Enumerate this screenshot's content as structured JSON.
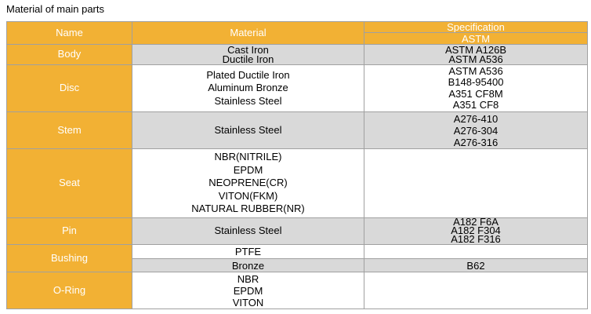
{
  "title": "Material of main parts",
  "header": {
    "name": "Name",
    "material": "Material",
    "specification": "Specification",
    "standard": "ASTM"
  },
  "rows": [
    {
      "name": "Body",
      "parts": [
        {
          "materials": [
            "Cast Iron",
            "Ductile Iron"
          ],
          "specs": [
            "ASTM A126B",
            "ASTM A536"
          ]
        }
      ]
    },
    {
      "name": "Disc",
      "parts": [
        {
          "materials": [
            "Plated Ductile Iron",
            "Aluminum Bronze",
            "Stainless Steel"
          ],
          "specs": [
            "ASTM A536",
            "B148-95400",
            "A351 CF8M",
            "A351 CF8"
          ]
        }
      ]
    },
    {
      "name": "Stem",
      "parts": [
        {
          "materials": [
            "Stainless Steel"
          ],
          "specs": [
            "A276-410",
            "A276-304",
            "A276-316"
          ]
        }
      ]
    },
    {
      "name": "Seat",
      "parts": [
        {
          "materials": [
            "NBR(NITRILE)",
            "EPDM",
            "NEOPRENE(CR)",
            "VITON(FKM)",
            "NATURAL RUBBER(NR)"
          ],
          "specs": []
        }
      ]
    },
    {
      "name": "Pin",
      "parts": [
        {
          "materials": [
            "Stainless Steel"
          ],
          "specs": [
            "A182 F6A",
            "A182 F304",
            "A182 F316"
          ]
        }
      ]
    },
    {
      "name": "Bushing",
      "parts": [
        {
          "materials": [
            "PTFE"
          ],
          "specs": []
        },
        {
          "materials": [
            "Bronze"
          ],
          "specs": [
            "B62"
          ]
        }
      ]
    },
    {
      "name": "O-Ring",
      "parts": [
        {
          "materials": [
            "NBR",
            "EPDM",
            "VITON"
          ],
          "specs": []
        }
      ]
    }
  ]
}
